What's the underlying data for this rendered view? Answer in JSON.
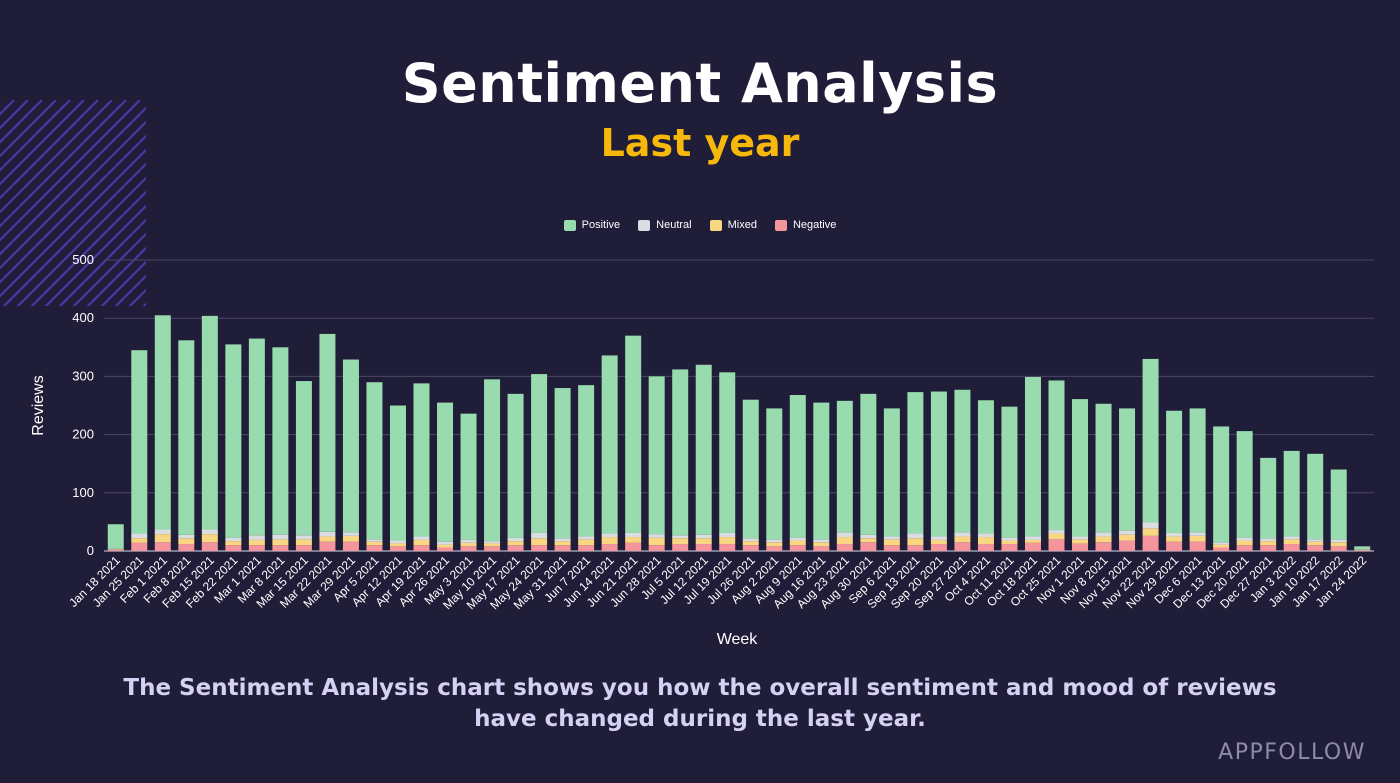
{
  "header": {
    "title": "Sentiment Analysis",
    "subtitle": "Last year"
  },
  "caption": "The Sentiment Analysis chart shows you how the overall sentiment and mood of reviews have changed during the last year.",
  "brand": "APPFOLLOW",
  "colors": {
    "background": "#201d39",
    "subtitle": "#f6b80b",
    "decor": "#4b38a8"
  },
  "chart_data": {
    "type": "bar",
    "stacked": true,
    "xlabel": "Week",
    "ylabel": "Reviews",
    "ylim": [
      0,
      500
    ],
    "yticks": [
      0,
      100,
      200,
      300,
      400,
      500
    ],
    "grid": true,
    "legend_position": "top-center",
    "categories": [
      "Jan 18 2021",
      "Jan 25 2021",
      "Feb 1 2021",
      "Feb 8 2021",
      "Feb 15 2021",
      "Feb 22 2021",
      "Mar 1 2021",
      "Mar 8 2021",
      "Mar 15 2021",
      "Mar 22 2021",
      "Mar 29 2021",
      "Apr 5 2021",
      "Apr 12 2021",
      "Apr 19 2021",
      "Apr 26 2021",
      "May 3 2021",
      "May 10 2021",
      "May 17 2021",
      "May 24 2021",
      "May 31 2021",
      "Jun 7 2021",
      "Jun 14 2021",
      "Jun 21 2021",
      "Jun 28 2021",
      "Jul 5 2021",
      "Jul 12 2021",
      "Jul 19 2021",
      "Jul 26 2021",
      "Aug 2 2021",
      "Aug 9 2021",
      "Aug 16 2021",
      "Aug 23 2021",
      "Aug 30 2021",
      "Sep 6 2021",
      "Sep 13 2021",
      "Sep 20 2021",
      "Sep 27 2021",
      "Oct 4 2021",
      "Oct 11 2021",
      "Oct 18 2021",
      "Oct 25 2021",
      "Nov 1 2021",
      "Nov 8 2021",
      "Nov 15 2021",
      "Nov 22 2021",
      "Nov 29 2021",
      "Dec 6 2021",
      "Dec 13 2021",
      "Dec 20 2021",
      "Dec 27 2021",
      "Jan 3 2022",
      "Jan 10 2022",
      "Jan 17 2022",
      "Jan 24 2022"
    ],
    "series": [
      {
        "name": "Negative",
        "color": "#f4949c",
        "values": [
          2,
          14,
          15,
          12,
          15,
          10,
          10,
          10,
          10,
          16,
          16,
          10,
          8,
          10,
          6,
          8,
          8,
          10,
          10,
          10,
          10,
          12,
          14,
          10,
          12,
          12,
          12,
          10,
          8,
          10,
          8,
          12,
          15,
          10,
          10,
          12,
          15,
          12,
          12,
          14,
          20,
          13,
          15,
          18,
          26,
          16,
          16,
          6,
          10,
          10,
          12,
          10,
          8,
          1
        ]
      },
      {
        "name": "Mixed",
        "color": "#f9d681",
        "values": [
          1,
          8,
          14,
          10,
          14,
          7,
          9,
          10,
          10,
          9,
          10,
          6,
          5,
          9,
          5,
          6,
          5,
          7,
          12,
          7,
          10,
          12,
          10,
          13,
          10,
          10,
          12,
          7,
          7,
          8,
          7,
          12,
          7,
          10,
          12,
          7,
          10,
          12,
          6,
          5,
          10,
          7,
          10,
          10,
          13,
          9,
          10,
          5,
          8,
          7,
          8,
          6,
          7,
          1
        ]
      },
      {
        "name": "Neutral",
        "color": "#d9dde1",
        "values": [
          1,
          8,
          8,
          6,
          8,
          6,
          8,
          8,
          7,
          8,
          6,
          4,
          5,
          6,
          5,
          5,
          4,
          6,
          9,
          5,
          5,
          6,
          7,
          6,
          5,
          6,
          7,
          5,
          5,
          5,
          5,
          8,
          6,
          5,
          8,
          6,
          7,
          6,
          5,
          6,
          6,
          5,
          7,
          7,
          10,
          6,
          6,
          4,
          5,
          5,
          5,
          4,
          5,
          1
        ]
      },
      {
        "name": "Positive",
        "color": "#98dbaf",
        "values": [
          42,
          315,
          368,
          334,
          367,
          332,
          338,
          322,
          265,
          340,
          297,
          270,
          232,
          263,
          239,
          217,
          278,
          247,
          273,
          258,
          260,
          306,
          339,
          271,
          285,
          292,
          276,
          238,
          225,
          245,
          235,
          226,
          242,
          220,
          243,
          249,
          245,
          229,
          225,
          274,
          257,
          236,
          221,
          210,
          281,
          210,
          213,
          199,
          183,
          138,
          147,
          147,
          120,
          5
        ]
      }
    ],
    "legend_order": [
      "Positive",
      "Neutral",
      "Mixed",
      "Negative"
    ]
  }
}
